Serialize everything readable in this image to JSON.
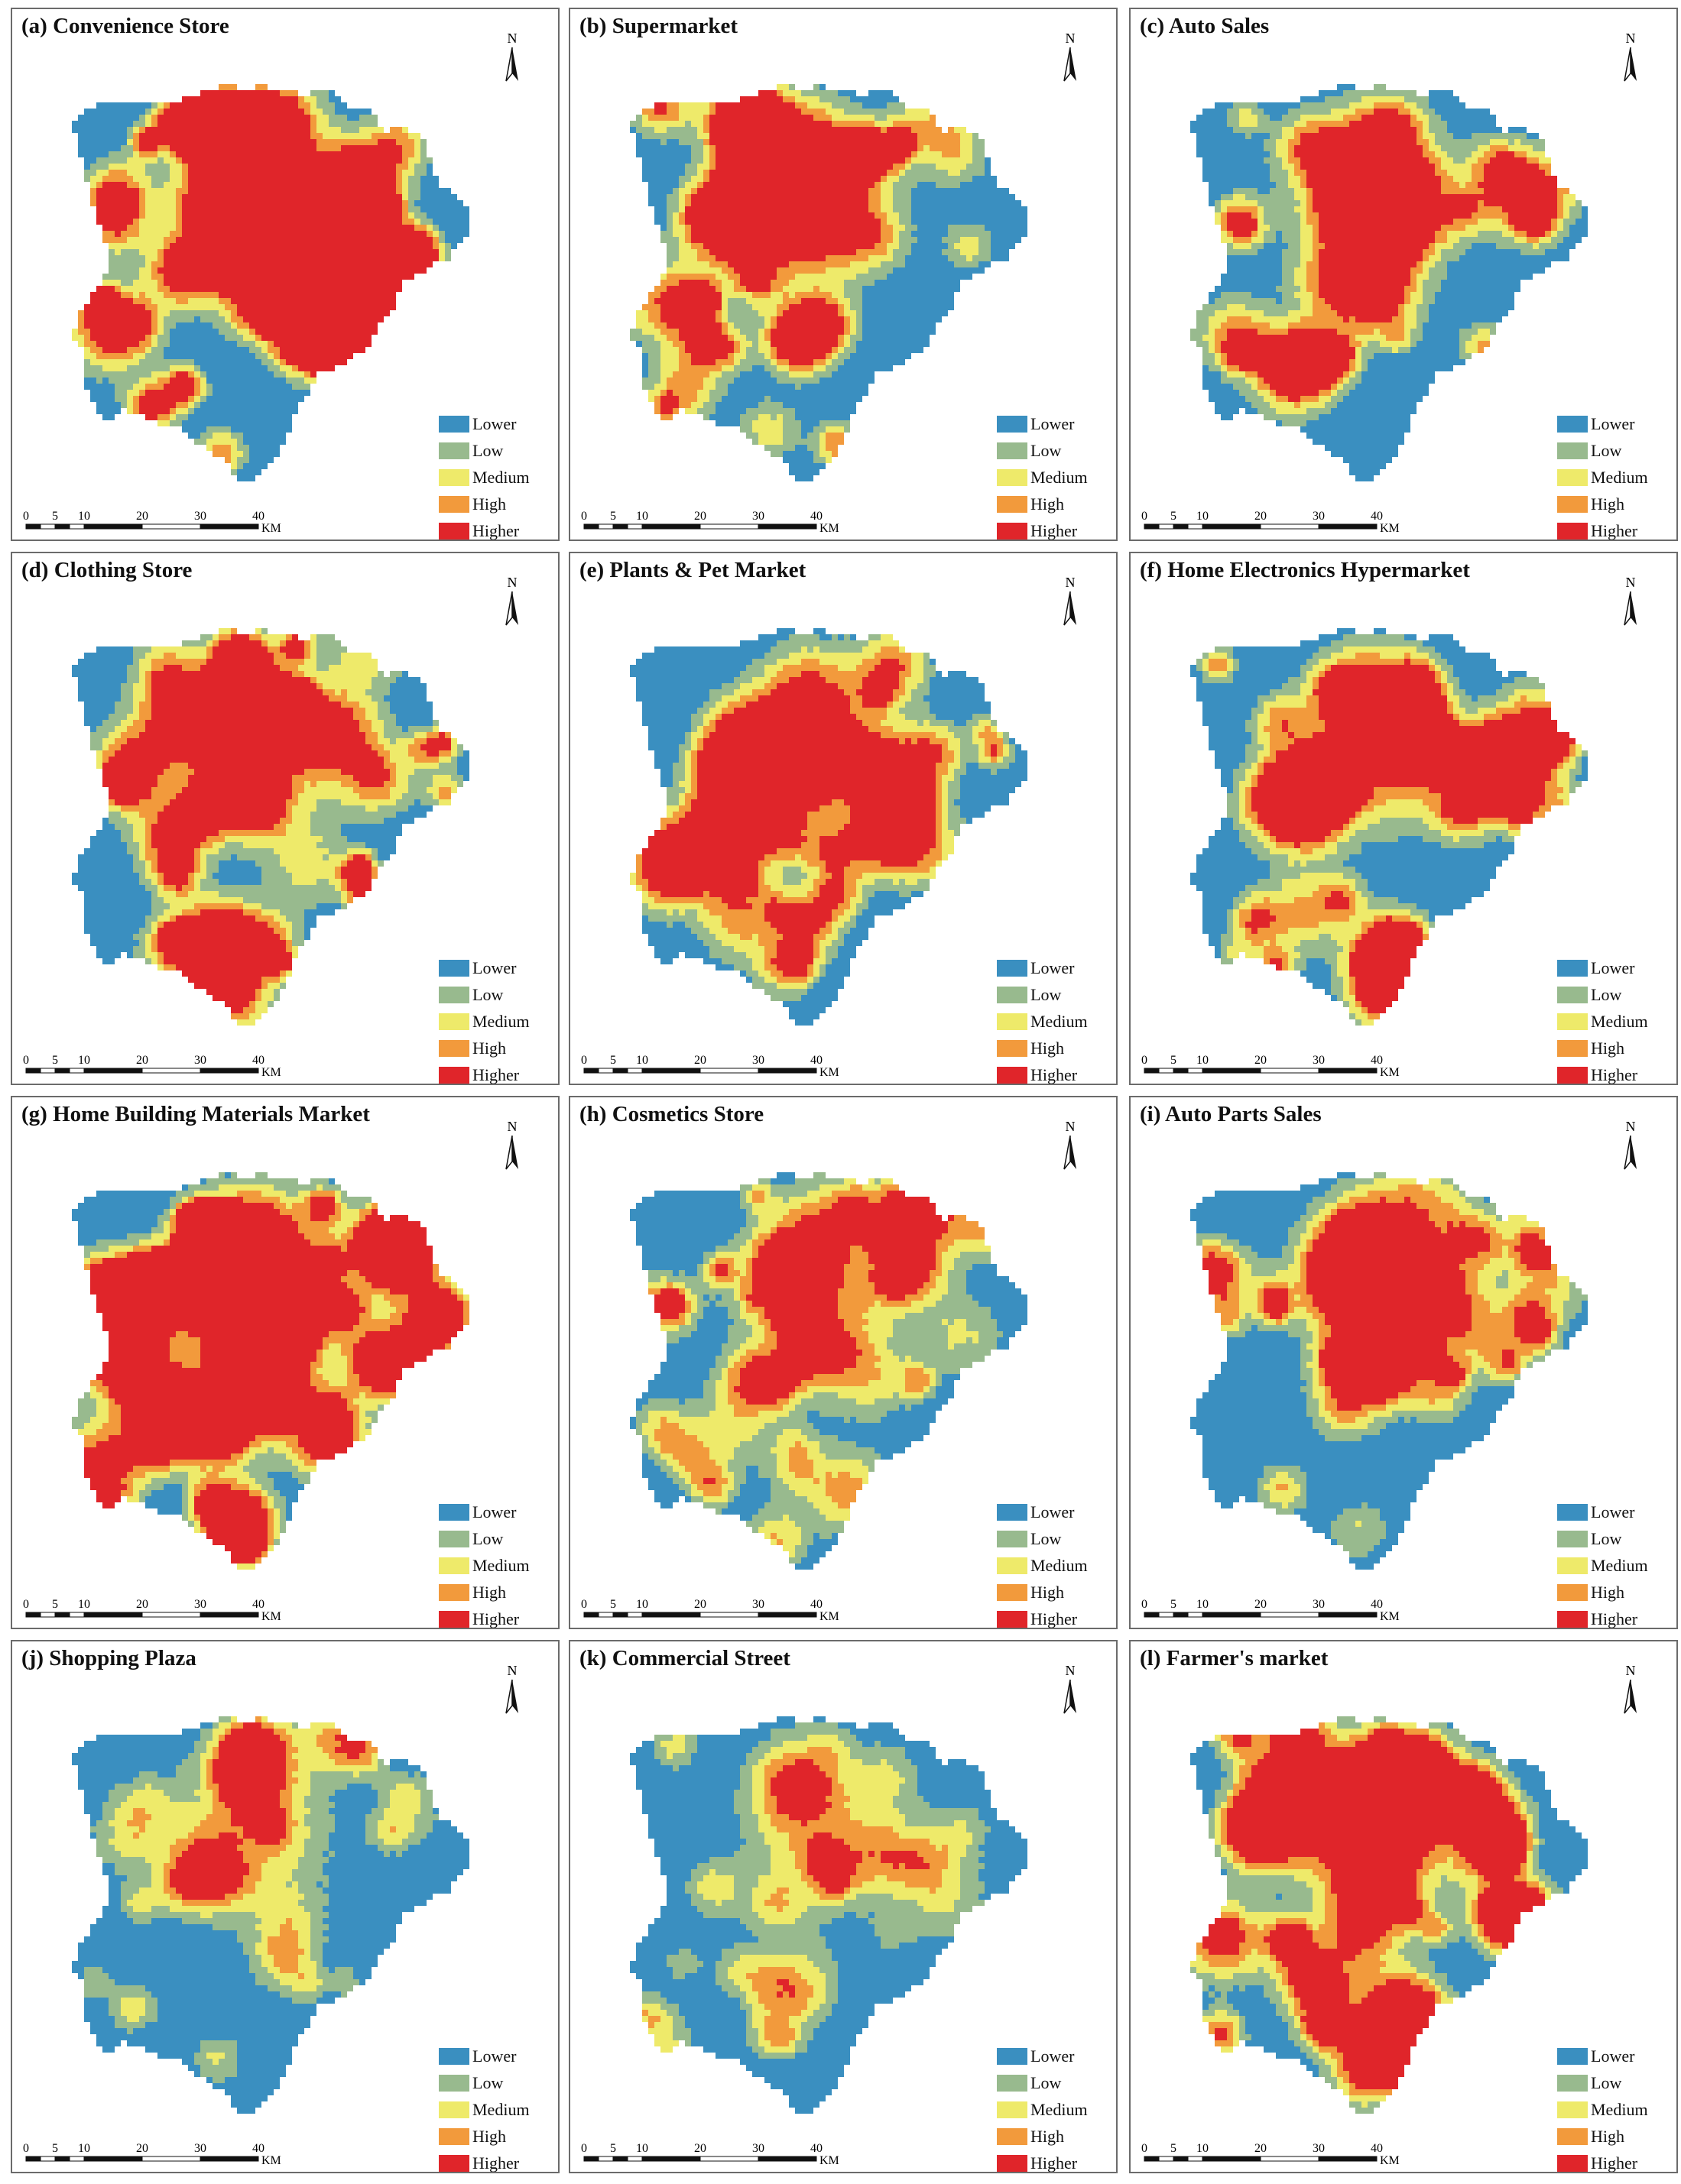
{
  "colors": {
    "Lower": "#3a8fc0",
    "Low": "#98ba8e",
    "Medium": "#eeea6a",
    "High": "#f29a3c",
    "Higher": "#e0252a"
  },
  "legend": [
    {
      "label": "Lower",
      "key": "Lower"
    },
    {
      "label": "Low",
      "key": "Low"
    },
    {
      "label": "Medium",
      "key": "Medium"
    },
    {
      "label": "High",
      "key": "High"
    },
    {
      "label": "Higher",
      "key": "Higher"
    }
  ],
  "north_label": "N",
  "scale": {
    "ticks": [
      "0",
      "5",
      "10",
      "20",
      "30",
      "40"
    ],
    "unit": "KM"
  },
  "panels": [
    {
      "title": "(a) Convenience Store",
      "intensity": 0.8
    },
    {
      "title": "(b) Supermarket",
      "intensity": 0.52
    },
    {
      "title": "(c) Auto Sales",
      "intensity": 0.42
    },
    {
      "title": "(d) Clothing Store",
      "intensity": 0.55
    },
    {
      "title": "(e) Plants & Pet Market",
      "intensity": 0.45
    },
    {
      "title": "(f) Home Electronics Hypermarket",
      "intensity": 0.58
    },
    {
      "title": "(g) Home Building Materials Market",
      "intensity": 0.85
    },
    {
      "title": "(h) Cosmetics Store",
      "intensity": 0.4
    },
    {
      "title": "(i) Auto Parts Sales",
      "intensity": 0.42
    },
    {
      "title": "(j) Shopping Plaza",
      "intensity": 0.22
    },
    {
      "title": "(k) Commercial Street",
      "intensity": 0.15
    },
    {
      "title": "(l) Farmer's market",
      "intensity": 0.68
    }
  ]
}
